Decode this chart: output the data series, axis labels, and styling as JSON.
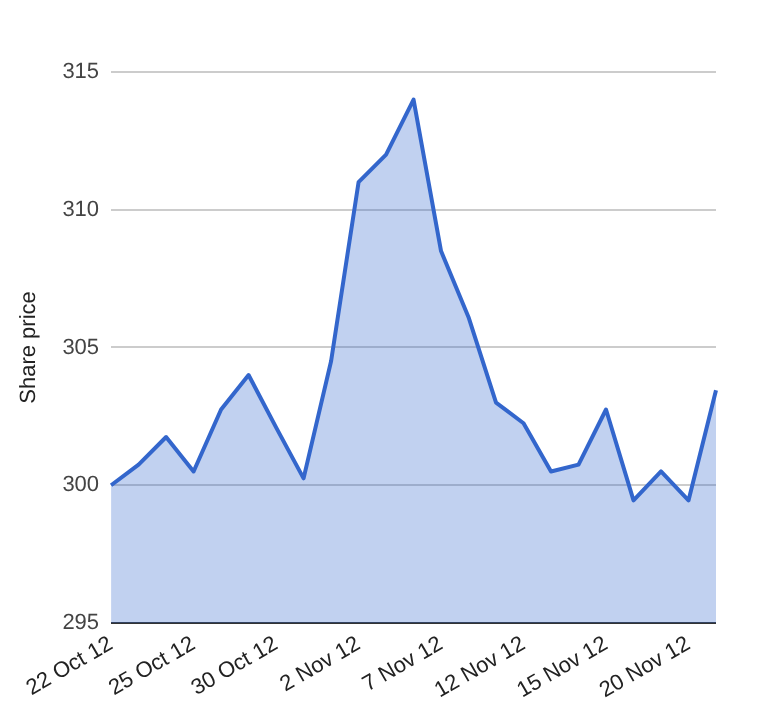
{
  "chart_data": {
    "type": "area",
    "ylabel": "Share price",
    "categories": [
      "22 Oct 12",
      null,
      null,
      "25 Oct 12",
      null,
      null,
      "30 Oct 12",
      null,
      null,
      "2 Nov 12",
      null,
      null,
      "7 Nov 12",
      null,
      null,
      "12 Nov 12",
      null,
      null,
      "15 Nov 12",
      null,
      null,
      "20 Nov 12",
      null
    ],
    "series": [
      {
        "color": "#3366cc",
        "values": [
          300,
          300.75,
          301.75,
          300.5,
          302.75,
          304,
          302.1,
          300.25,
          304.5,
          311,
          312,
          314,
          308.5,
          306.1,
          303,
          302.25,
          300.5,
          300.75,
          302.75,
          299.45,
          300.5,
          299.45,
          303.45
        ]
      }
    ],
    "ylim": [
      295,
      315
    ],
    "yticks": [
      295,
      300,
      305,
      310,
      315
    ],
    "grid": "y",
    "legend": false
  }
}
